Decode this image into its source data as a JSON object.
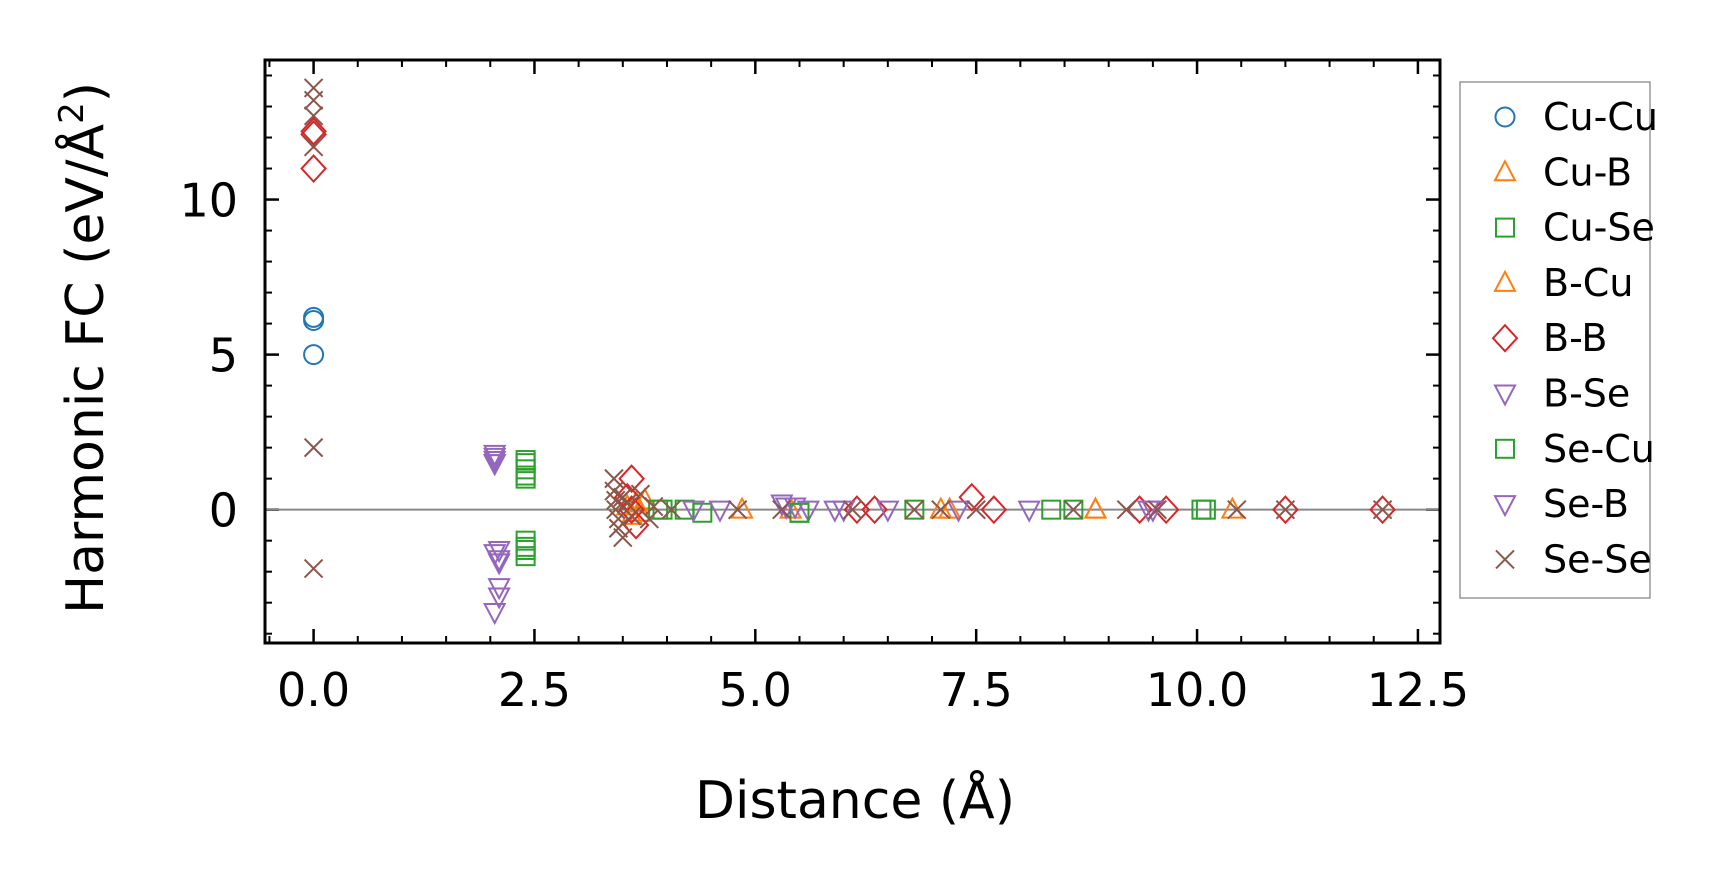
{
  "chart_data": {
    "type": "scatter",
    "xlabel": "Distance (Å)",
    "ylabel_main": "Harmonic FC (eV/Å",
    "ylabel_sup": "2",
    "ylabel_close": ")",
    "xlim": [
      -0.55,
      12.75
    ],
    "ylim": [
      -4.3,
      14.5
    ],
    "xticks": [
      0.0,
      2.5,
      5.0,
      7.5,
      10.0,
      12.5
    ],
    "xtick_labels": [
      "0.0",
      "2.5",
      "5.0",
      "7.5",
      "10.0",
      "12.5"
    ],
    "yticks": [
      0,
      5,
      10
    ],
    "ytick_labels": [
      "0",
      "5",
      "10"
    ],
    "zero_line": true,
    "legend_position": "outside-right",
    "series": [
      {
        "name": "Cu-Cu",
        "marker": "circle",
        "color": "#1f77b4",
        "x": [
          0.0,
          0.0,
          0.0
        ],
        "y": [
          6.2,
          6.1,
          5.0
        ]
      },
      {
        "name": "Cu-B",
        "marker": "triangle-up",
        "color": "#ff7f0e",
        "x": [
          3.55,
          3.6,
          3.75,
          4.85,
          7.1,
          8.85,
          10.4
        ],
        "y": [
          0.1,
          -0.2,
          0.3,
          0.0,
          0.0,
          0.0,
          0.0
        ]
      },
      {
        "name": "Cu-Se",
        "marker": "square",
        "color": "#2ca02c",
        "x": [
          2.4,
          2.4,
          2.4,
          2.4,
          2.4,
          3.95,
          4.2,
          4.4,
          5.5,
          6.8,
          8.35,
          10.05
        ],
        "y": [
          1.6,
          1.3,
          1.0,
          -1.0,
          -1.3,
          0.0,
          0.0,
          -0.1,
          -0.1,
          0.0,
          0.0,
          0.0
        ]
      },
      {
        "name": "B-Cu",
        "marker": "triangle-up",
        "color": "#ff7f0e",
        "x": [
          3.65,
          3.7,
          5.4,
          7.2,
          8.85
        ],
        "y": [
          0.2,
          -0.1,
          0.0,
          0.0,
          0.0
        ]
      },
      {
        "name": "B-B",
        "marker": "diamond",
        "color": "#d62728",
        "x": [
          0.0,
          0.0,
          0.0,
          3.6,
          3.55,
          3.6,
          3.65,
          6.15,
          6.35,
          7.45,
          7.7,
          9.35,
          9.65,
          11.0,
          12.1
        ],
        "y": [
          12.2,
          12.1,
          11.0,
          1.0,
          0.4,
          0.0,
          -0.5,
          0.0,
          0.0,
          0.4,
          0.0,
          0.0,
          0.0,
          0.0,
          0.0
        ]
      },
      {
        "name": "B-Se",
        "marker": "triangle-down",
        "color": "#9467bd",
        "x": [
          2.05,
          2.05,
          2.05,
          2.05,
          2.1,
          2.1,
          2.1,
          2.05,
          4.3,
          4.6,
          5.35,
          5.6,
          5.9,
          6.5,
          8.1,
          9.45
        ],
        "y": [
          1.8,
          1.6,
          1.5,
          -1.4,
          -1.6,
          -2.5,
          -2.8,
          -3.3,
          0.0,
          0.0,
          0.1,
          0.0,
          0.0,
          0.0,
          0.0,
          0.0
        ]
      },
      {
        "name": "Se-Cu",
        "marker": "square",
        "color": "#2ca02c",
        "x": [
          2.4,
          2.4,
          2.4,
          2.4,
          3.9,
          5.5,
          8.6,
          10.1
        ],
        "y": [
          1.5,
          1.1,
          -1.2,
          -1.5,
          0.0,
          -0.1,
          0.0,
          0.0
        ]
      },
      {
        "name": "Se-B",
        "marker": "triangle-down",
        "color": "#9467bd",
        "x": [
          2.05,
          2.05,
          2.1,
          2.1,
          5.3,
          5.45,
          6.0,
          7.3,
          9.5
        ],
        "y": [
          1.7,
          1.5,
          -1.3,
          -1.7,
          0.2,
          0.1,
          0.0,
          0.0,
          0.0
        ]
      },
      {
        "name": "Se-Se",
        "marker": "x",
        "color": "#8c564b",
        "x": [
          0.0,
          0.0,
          0.0,
          0.0,
          0.0,
          0.0,
          3.4,
          3.4,
          3.42,
          3.42,
          3.45,
          3.45,
          3.5,
          3.5,
          3.55,
          3.6,
          3.7,
          3.8,
          3.85,
          4.05,
          4.8,
          5.3,
          6.1,
          6.8,
          7.1,
          7.5,
          8.6,
          9.2,
          9.55,
          10.45,
          11.0,
          12.1
        ],
        "y": [
          13.6,
          13.2,
          12.7,
          11.7,
          2.0,
          -1.9,
          1.0,
          0.6,
          0.3,
          0.0,
          -0.3,
          -0.6,
          -0.9,
          0.4,
          0.2,
          -0.2,
          0.5,
          -0.3,
          0.1,
          0.0,
          0.0,
          0.0,
          0.0,
          0.0,
          0.0,
          0.0,
          0.0,
          0.0,
          0.0,
          0.0,
          0.0,
          0.0
        ]
      }
    ]
  }
}
